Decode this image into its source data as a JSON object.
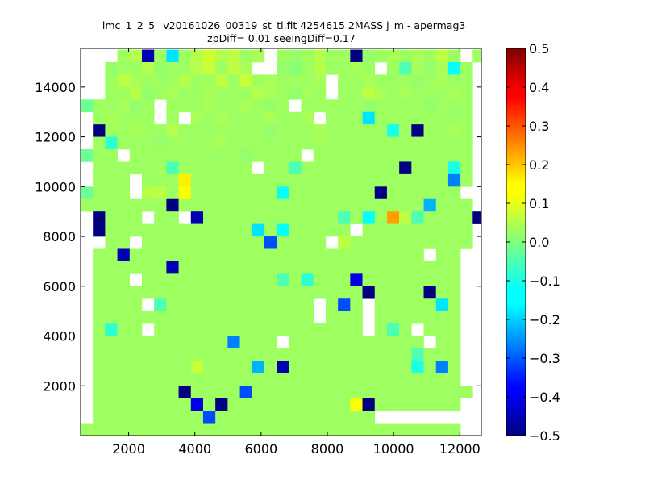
{
  "chart_data": {
    "type": "heatmap",
    "title_line1": "_lmc_1_2_5_ v20161026_00319_st_tl.fit 4254615 2MASS j_m - apermag3",
    "title_line2": "zpDiff= 0.01 seeingDiff=0.17",
    "xlabel": "",
    "ylabel": "",
    "xlim": [
      550,
      12650
    ],
    "ylim": [
      0,
      15550
    ],
    "xticks": [
      2000,
      4000,
      6000,
      8000,
      10000,
      12000
    ],
    "xticklabels": [
      "2000",
      "4000",
      "6000",
      "8000",
      "10000",
      "12000"
    ],
    "yticks": [
      2000,
      4000,
      6000,
      8000,
      10000,
      12000,
      14000
    ],
    "yticklabels": [
      "2000",
      "4000",
      "6000",
      "8000",
      "10000",
      "12000",
      "14000"
    ],
    "colorbar": {
      "vmin": -0.5,
      "vmax": 0.5,
      "colormap": "jet",
      "ticks": [
        -0.5,
        -0.4,
        -0.3,
        -0.2,
        -0.1,
        0.0,
        0.1,
        0.2,
        0.3,
        0.4,
        0.5
      ],
      "ticklabels": [
        "−0.5",
        "−0.4",
        "−0.3",
        "−0.2",
        "−0.1",
        "0.0",
        "0.1",
        "0.2",
        "0.3",
        "0.4",
        "0.5"
      ]
    },
    "grid": {
      "x0": 550,
      "dx": 370,
      "y0": 0,
      "dy": 500,
      "ncols": 33,
      "nrows": 31,
      "cells_note": "values listed by row from top row (y 15000-15500) to bottom row (y 0-500); each row lists value per column; null = no data (white)",
      "values": [
        [
          null,
          null,
          null,
          0.03,
          0.05,
          -0.45,
          0.03,
          -0.15,
          0.03,
          0.05,
          0.08,
          0.05,
          0.06,
          0.03,
          0.04,
          null,
          0.03,
          0.02,
          0.03,
          0.05,
          0.03,
          0.03,
          -0.5,
          0.02,
          0.03,
          0.04,
          0.03,
          0.04,
          0.03,
          0.06,
          0.03,
          null,
          0.03
        ],
        [
          null,
          null,
          0.02,
          0.03,
          0.03,
          0.05,
          0.02,
          0.03,
          0.03,
          0.05,
          0.07,
          0.03,
          0.06,
          0.04,
          null,
          null,
          0.02,
          0.01,
          0.03,
          0.05,
          0.03,
          0.03,
          0.04,
          0.03,
          null,
          0.03,
          -0.05,
          0.04,
          0.02,
          0.04,
          -0.12,
          0.03,
          null
        ],
        [
          null,
          null,
          0.03,
          0.06,
          0.04,
          0.03,
          0.03,
          0.03,
          0.05,
          0.03,
          0.03,
          0.06,
          0.03,
          0.07,
          0.03,
          0.04,
          0.03,
          0.03,
          0.03,
          0.04,
          null,
          0.03,
          0.03,
          0.04,
          0.03,
          0.03,
          0.03,
          0.02,
          0.03,
          0.04,
          0.03,
          0.03,
          null
        ],
        [
          null,
          null,
          0.03,
          0.03,
          0.05,
          0.02,
          0.03,
          0.04,
          0.03,
          0.03,
          0.04,
          0.03,
          0.03,
          0.03,
          0.05,
          0.04,
          0.03,
          0.02,
          0.04,
          0.03,
          null,
          0.03,
          0.03,
          0.06,
          0.04,
          0.03,
          0.04,
          0.03,
          0.03,
          0.03,
          0.04,
          0.03,
          null
        ],
        [
          -0.02,
          0.03,
          0.03,
          0.04,
          0.02,
          0.03,
          null,
          0.03,
          0.03,
          0.03,
          0.04,
          0.03,
          0.03,
          0.04,
          0.03,
          0.02,
          0.03,
          null,
          0.03,
          0.03,
          0.03,
          0.03,
          0.03,
          0.02,
          0.03,
          0.03,
          0.03,
          0.03,
          0.02,
          0.03,
          0.03,
          0.03,
          null
        ],
        [
          null,
          0.03,
          0.04,
          0.03,
          0.03,
          0.03,
          null,
          0.03,
          null,
          0.04,
          0.03,
          0.04,
          0.03,
          0.03,
          0.03,
          0.04,
          0.03,
          0.03,
          0.04,
          null,
          0.03,
          0.03,
          0.03,
          -0.15,
          0.03,
          0.03,
          0.03,
          0.03,
          0.03,
          0.03,
          0.03,
          0.03,
          null
        ],
        [
          null,
          -0.5,
          0.03,
          0.03,
          0.04,
          0.03,
          0.03,
          0.05,
          0.03,
          0.03,
          0.03,
          0.03,
          0.03,
          0.03,
          0.03,
          0.02,
          0.03,
          0.03,
          0.03,
          0.04,
          0.03,
          0.03,
          0.03,
          0.03,
          0.03,
          -0.1,
          0.03,
          -0.5,
          0.03,
          0.03,
          0.04,
          0.03,
          null
        ],
        [
          null,
          0.03,
          -0.08,
          0.03,
          0.03,
          0.03,
          0.02,
          0.03,
          0.03,
          0.03,
          0.03,
          0.04,
          0.03,
          0.03,
          0.03,
          0.03,
          0.03,
          0.03,
          0.03,
          0.03,
          0.03,
          0.03,
          0.03,
          0.03,
          0.03,
          0.03,
          0.03,
          0.03,
          0.03,
          0.03,
          0.03,
          0.03,
          null
        ],
        [
          -0.02,
          0.03,
          0.03,
          null,
          0.03,
          0.03,
          0.03,
          0.03,
          0.03,
          0.03,
          0.03,
          0.03,
          0.03,
          0.02,
          0.03,
          0.03,
          0.03,
          0.03,
          null,
          0.03,
          0.03,
          0.03,
          0.03,
          0.03,
          0.03,
          0.03,
          0.03,
          0.03,
          0.03,
          0.03,
          0.03,
          0.03,
          null
        ],
        [
          null,
          0.03,
          0.03,
          0.03,
          0.03,
          0.03,
          0.03,
          -0.05,
          0.03,
          0.03,
          0.03,
          0.03,
          0.03,
          0.03,
          null,
          0.03,
          0.03,
          -0.05,
          0.03,
          0.03,
          0.03,
          0.03,
          0.03,
          0.03,
          0.03,
          0.03,
          -0.5,
          0.03,
          0.03,
          0.03,
          -0.1,
          0.03,
          null
        ],
        [
          null,
          0.03,
          0.03,
          0.03,
          null,
          0.03,
          0.03,
          0.03,
          0.14,
          0.03,
          0.03,
          0.03,
          0.03,
          0.03,
          0.03,
          0.03,
          0.03,
          0.03,
          0.03,
          0.03,
          0.03,
          0.03,
          0.03,
          0.03,
          0.03,
          0.03,
          0.03,
          0.03,
          0.03,
          0.03,
          -0.25,
          0.03,
          null
        ],
        [
          -0.02,
          0.03,
          0.03,
          0.03,
          null,
          0.05,
          0.06,
          0.03,
          0.12,
          0.03,
          0.03,
          0.03,
          0.03,
          0.03,
          0.03,
          0.03,
          -0.12,
          0.03,
          0.03,
          0.03,
          0.03,
          0.03,
          0.03,
          0.03,
          -0.5,
          0.03,
          0.03,
          0.03,
          0.03,
          0.03,
          0.03,
          null,
          null
        ],
        [
          0.03,
          0.03,
          0.03,
          0.03,
          0.03,
          0.03,
          0.03,
          -0.5,
          0.03,
          0.03,
          0.03,
          0.03,
          0.03,
          0.03,
          0.03,
          0.03,
          0.03,
          0.03,
          0.03,
          0.03,
          0.03,
          0.03,
          0.03,
          0.03,
          0.03,
          0.03,
          0.03,
          0.03,
          -0.2,
          0.03,
          0.03,
          0.03,
          null
        ],
        [
          null,
          -0.5,
          0.03,
          0.03,
          0.03,
          null,
          0.03,
          0.03,
          null,
          -0.45,
          0.03,
          0.03,
          0.03,
          0.03,
          0.03,
          0.03,
          0.03,
          0.03,
          0.03,
          0.03,
          0.03,
          -0.05,
          0.03,
          -0.12,
          0.03,
          0.22,
          0.06,
          -0.05,
          0.03,
          0.03,
          0.03,
          0.03,
          -0.5
        ],
        [
          null,
          -0.5,
          0.03,
          0.03,
          0.03,
          0.03,
          0.03,
          0.03,
          0.03,
          0.03,
          0.03,
          0.03,
          0.03,
          0.03,
          -0.15,
          0.03,
          -0.12,
          0.03,
          0.03,
          0.03,
          0.03,
          0.03,
          null,
          0.03,
          0.03,
          0.03,
          0.03,
          0.03,
          0.03,
          0.03,
          0.03,
          0.03,
          null
        ],
        [
          null,
          null,
          0.03,
          0.03,
          null,
          0.03,
          0.03,
          0.03,
          0.03,
          0.03,
          0.03,
          0.03,
          0.03,
          0.03,
          0.03,
          -0.3,
          0.03,
          0.03,
          0.03,
          0.03,
          null,
          0.06,
          0.03,
          0.03,
          0.03,
          0.03,
          0.03,
          0.03,
          0.03,
          0.03,
          0.03,
          0.03,
          null
        ],
        [
          null,
          0.03,
          0.03,
          -0.45,
          0.03,
          0.03,
          0.03,
          0.03,
          0.03,
          0.03,
          0.03,
          0.03,
          0.03,
          0.03,
          0.03,
          0.03,
          0.03,
          0.03,
          0.03,
          0.03,
          0.03,
          0.03,
          0.03,
          0.03,
          0.03,
          0.03,
          0.03,
          0.03,
          null,
          0.03,
          0.03,
          null,
          null
        ],
        [
          null,
          0.03,
          0.03,
          0.03,
          0.03,
          0.03,
          0.03,
          -0.45,
          0.03,
          0.03,
          0.03,
          0.03,
          0.03,
          0.03,
          0.03,
          0.03,
          0.03,
          0.03,
          0.03,
          0.03,
          0.03,
          0.03,
          0.03,
          0.03,
          0.03,
          0.03,
          0.03,
          0.03,
          0.03,
          0.03,
          0.03,
          null,
          null
        ],
        [
          null,
          0.03,
          0.03,
          0.03,
          null,
          0.03,
          0.03,
          0.03,
          0.03,
          0.03,
          0.03,
          0.03,
          0.03,
          0.03,
          0.03,
          0.03,
          -0.05,
          0.03,
          -0.08,
          0.03,
          0.03,
          0.03,
          -0.4,
          0.03,
          0.03,
          0.03,
          0.03,
          0.03,
          0.03,
          0.03,
          0.03,
          null,
          null
        ],
        [
          null,
          0.03,
          0.03,
          0.03,
          0.03,
          0.03,
          0.03,
          0.03,
          0.03,
          0.03,
          0.03,
          0.03,
          0.03,
          0.03,
          0.03,
          0.03,
          0.03,
          0.03,
          0.03,
          0.03,
          0.03,
          0.03,
          0.03,
          -0.5,
          0.03,
          0.03,
          0.03,
          0.03,
          -0.5,
          0.03,
          0.03,
          null,
          null
        ],
        [
          null,
          0.03,
          0.03,
          0.03,
          0.03,
          null,
          -0.05,
          0.03,
          0.03,
          0.03,
          0.03,
          0.03,
          0.03,
          0.03,
          0.03,
          0.03,
          0.03,
          0.03,
          0.03,
          null,
          0.03,
          -0.3,
          0.03,
          null,
          0.03,
          0.03,
          0.03,
          0.03,
          0.03,
          -0.15,
          0.03,
          null,
          null
        ],
        [
          null,
          0.03,
          0.03,
          0.03,
          0.03,
          0.03,
          0.03,
          0.03,
          0.03,
          0.03,
          0.03,
          0.03,
          0.03,
          0.03,
          0.03,
          0.03,
          0.03,
          0.03,
          0.03,
          null,
          0.03,
          0.03,
          0.03,
          null,
          0.03,
          0.03,
          0.03,
          0.03,
          0.03,
          0.03,
          0.03,
          null,
          null
        ],
        [
          null,
          0.03,
          -0.08,
          0.03,
          0.03,
          null,
          0.03,
          0.03,
          0.03,
          0.03,
          0.03,
          0.03,
          0.03,
          0.03,
          0.03,
          0.03,
          0.03,
          0.03,
          0.03,
          0.03,
          0.03,
          0.03,
          0.03,
          null,
          0.03,
          -0.05,
          0.03,
          null,
          0.03,
          0.03,
          0.03,
          null,
          null
        ],
        [
          null,
          0.03,
          0.03,
          0.03,
          0.03,
          0.03,
          0.03,
          0.03,
          0.03,
          0.03,
          0.03,
          0.03,
          -0.25,
          0.03,
          0.03,
          0.03,
          null,
          0.03,
          0.03,
          0.03,
          0.03,
          0.03,
          0.03,
          0.03,
          0.03,
          0.03,
          0.03,
          0.03,
          null,
          0.03,
          0.03,
          null,
          null
        ],
        [
          null,
          0.03,
          0.03,
          0.03,
          0.03,
          0.03,
          0.03,
          0.03,
          0.03,
          0.03,
          0.03,
          0.03,
          0.03,
          0.03,
          0.03,
          0.03,
          0.03,
          0.03,
          0.03,
          0.03,
          0.03,
          0.03,
          0.03,
          0.03,
          0.03,
          0.03,
          0.03,
          -0.05,
          0.03,
          0.03,
          0.03,
          null,
          null
        ],
        [
          null,
          0.03,
          0.03,
          0.03,
          0.03,
          0.03,
          0.03,
          0.03,
          0.03,
          0.07,
          0.03,
          0.03,
          0.03,
          0.03,
          -0.2,
          0.03,
          -0.45,
          0.03,
          0.03,
          0.03,
          0.03,
          0.03,
          0.03,
          0.03,
          0.03,
          0.03,
          0.03,
          -0.1,
          0.03,
          -0.25,
          0.03,
          null,
          null
        ],
        [
          null,
          0.03,
          0.03,
          0.03,
          0.03,
          0.03,
          0.03,
          0.03,
          0.03,
          0.03,
          0.03,
          0.03,
          0.03,
          0.03,
          0.03,
          0.03,
          0.03,
          0.03,
          0.03,
          0.03,
          0.03,
          0.03,
          0.03,
          0.03,
          0.03,
          0.03,
          0.03,
          0.03,
          0.03,
          0.03,
          0.03,
          null,
          null
        ],
        [
          null,
          0.03,
          0.03,
          0.03,
          0.03,
          0.03,
          0.03,
          0.03,
          -0.5,
          0.03,
          0.03,
          0.03,
          0.03,
          -0.3,
          0.03,
          0.03,
          0.03,
          0.03,
          0.03,
          0.03,
          0.03,
          0.03,
          0.03,
          0.03,
          0.03,
          0.03,
          0.03,
          0.03,
          0.03,
          0.03,
          0.03,
          0.03,
          null
        ],
        [
          null,
          0.03,
          0.03,
          0.03,
          0.03,
          0.03,
          0.03,
          0.03,
          0.03,
          -0.4,
          0.03,
          -0.5,
          0.03,
          0.03,
          0.03,
          0.03,
          0.03,
          0.03,
          0.03,
          0.03,
          0.03,
          0.03,
          0.12,
          -0.5,
          0.03,
          0.03,
          0.03,
          0.03,
          0.03,
          0.03,
          0.03,
          null,
          null
        ],
        [
          null,
          0.03,
          0.03,
          0.03,
          0.03,
          0.03,
          0.03,
          0.03,
          0.03,
          0.03,
          -0.3,
          0.03,
          0.03,
          0.03,
          0.03,
          0.03,
          0.03,
          0.03,
          0.03,
          0.03,
          0.03,
          0.03,
          0.03,
          0.03,
          null,
          null,
          null,
          null,
          null,
          null,
          null,
          null,
          null
        ],
        [
          0.03,
          0.03,
          0.03,
          0.03,
          0.03,
          0.03,
          0.03,
          0.03,
          0.03,
          0.03,
          0.03,
          0.03,
          0.03,
          0.03,
          0.03,
          0.03,
          0.03,
          0.03,
          0.03,
          0.03,
          0.03,
          0.03,
          0.03,
          0.03,
          0.03,
          0.03,
          0.03,
          0.03,
          0.03,
          0.03,
          0.03,
          null,
          null
        ]
      ]
    }
  }
}
